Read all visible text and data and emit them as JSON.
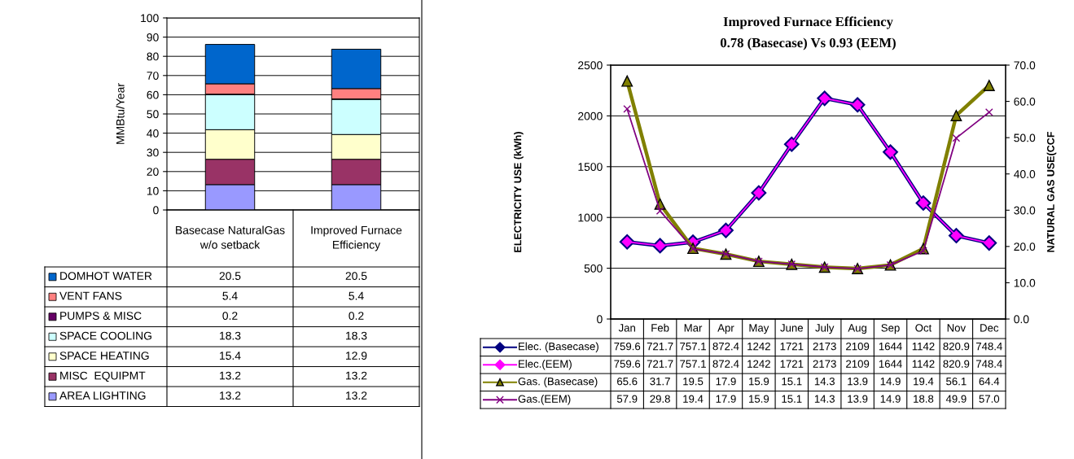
{
  "chart_data": [
    {
      "type": "bar",
      "stacked": true,
      "ylabel": "MMBtu/Year",
      "categories": [
        "Basecase NaturalGas w/o setback",
        "Improved Furnace Efficiency"
      ],
      "ylim": [
        0,
        100
      ],
      "yticks": [
        0,
        10,
        20,
        30,
        40,
        50,
        60,
        70,
        80,
        90,
        100
      ],
      "grid": "y",
      "legend": "bottom",
      "series": [
        {
          "name": "AREA LIGHTING",
          "color": "#9999ff",
          "values": [
            13.2,
            13.2
          ],
          "value_labels": [
            "13.2",
            "13.2"
          ]
        },
        {
          "name": "MISC  EQUIPMT",
          "color": "#993366",
          "values": [
            13.2,
            13.2
          ],
          "value_labels": [
            "13.2",
            "13.2"
          ]
        },
        {
          "name": "SPACE HEATING",
          "color": "#ffffcc",
          "values": [
            15.4,
            12.9
          ],
          "value_labels": [
            "15.4",
            "12.9"
          ]
        },
        {
          "name": "SPACE COOLING",
          "color": "#ccffff",
          "values": [
            18.3,
            18.3
          ],
          "value_labels": [
            "18.3",
            "18.3"
          ]
        },
        {
          "name": "PUMPS & MISC",
          "color": "#660066",
          "values": [
            0.2,
            0.2
          ],
          "value_labels": [
            "0.2",
            "0.2"
          ]
        },
        {
          "name": "VENT FANS",
          "color": "#ff8080",
          "values": [
            5.4,
            5.4
          ],
          "value_labels": [
            "5.4",
            "5.4"
          ]
        },
        {
          "name": "DOMHOT WATER",
          "color": "#0066cc",
          "values": [
            20.5,
            20.5
          ],
          "value_labels": [
            "20.5",
            "20.5"
          ]
        }
      ]
    },
    {
      "type": "line",
      "title": "Improved Furnace Efficiency",
      "subtitle": "0.78 (Basecase) Vs 0.93 (EEM)",
      "ylabel": "ELECTRICITY USE (kWh)",
      "y2label": "NATURAL GAS USE(CCF",
      "categories": [
        "Jan",
        "Feb",
        "Mar",
        "Apr",
        "May",
        "June",
        "July",
        "Aug",
        "Sep",
        "Oct",
        "Nov",
        "Dec"
      ],
      "ylim": [
        0,
        2500
      ],
      "yticks": [
        0,
        500,
        1000,
        1500,
        2000,
        2500
      ],
      "y2lim": [
        0,
        70
      ],
      "y2ticks": [
        {
          "value": 0,
          "label": "0.0"
        },
        {
          "value": 10,
          "label": "10.0"
        },
        {
          "value": 20,
          "label": "20.0"
        },
        {
          "value": 30,
          "label": "30.0"
        },
        {
          "value": 40,
          "label": "40.0"
        },
        {
          "value": 50,
          "label": "50.0"
        },
        {
          "value": 60,
          "label": "60.0"
        },
        {
          "value": 70,
          "label": "70.0"
        }
      ],
      "grid": "y",
      "legend": "bottom",
      "line_style": "solid",
      "series": [
        {
          "name": "Elec. (Basecase)",
          "color": "#000080",
          "marker": "diamond",
          "values": [
            759.6,
            721.7,
            757.1,
            872.4,
            1242,
            1721,
            2173,
            2109,
            1644,
            1142,
            820.9,
            748.4
          ],
          "value_labels": [
            "759.6",
            "721.7",
            "757.1",
            "872.4",
            "1242",
            "1721",
            "2173",
            "2109",
            "1644",
            "1142",
            "820.9",
            "748.4"
          ]
        },
        {
          "name": "Elec.(EEM)",
          "color": "#ff00ff",
          "marker": "diamond",
          "values": [
            759.6,
            721.7,
            757.1,
            872.4,
            1242,
            1721,
            2173,
            2109,
            1644,
            1142,
            820.9,
            748.4
          ],
          "value_labels": [
            "759.6",
            "721.7",
            "757.1",
            "872.4",
            "1242",
            "1721",
            "2173",
            "2109",
            "1644",
            "1142",
            "820.9",
            "748.4"
          ]
        },
        {
          "name": "Gas. (Basecase)",
          "color": "#808000",
          "marker": "triangle",
          "axis": "y2",
          "values": [
            65.6,
            31.7,
            19.5,
            17.9,
            15.9,
            15.1,
            14.3,
            13.9,
            14.9,
            19.4,
            56.1,
            64.4
          ],
          "value_labels": [
            "65.6",
            "31.7",
            "19.5",
            "17.9",
            "15.9",
            "15.1",
            "14.3",
            "13.9",
            "14.9",
            "19.4",
            "56.1",
            "64.4"
          ]
        },
        {
          "name": "Gas.(EEM)",
          "color": "#800080",
          "marker": "cross",
          "axis": "y2",
          "values": [
            57.9,
            29.8,
            19.4,
            17.9,
            15.9,
            15.1,
            14.3,
            13.9,
            14.9,
            18.8,
            49.9,
            57.0
          ],
          "value_labels": [
            "57.9",
            "29.8",
            "19.4",
            "17.9",
            "15.9",
            "15.1",
            "14.3",
            "13.9",
            "14.9",
            "18.8",
            "49.9",
            "57.0"
          ]
        }
      ]
    }
  ]
}
